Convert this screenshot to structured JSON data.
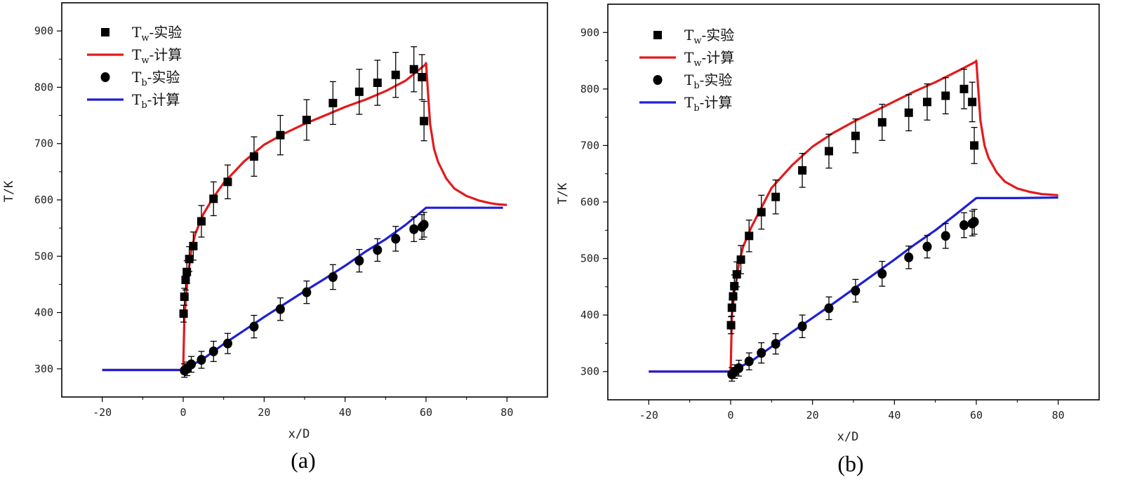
{
  "chart_data": [
    {
      "type": "line",
      "panel_label": "(a)",
      "xlabel": "x/D",
      "ylabel": "T/K",
      "xlim": [
        -30,
        90
      ],
      "ylim": [
        250,
        950
      ],
      "xticks": [
        -20,
        0,
        20,
        40,
        60,
        80
      ],
      "yticks": [
        300,
        400,
        500,
        600,
        700,
        800,
        900
      ],
      "xtick_labels": [
        "-20",
        "0",
        "20",
        "40",
        "60",
        "80"
      ],
      "ytick_labels": [
        "300",
        "400",
        "500",
        "600",
        "700",
        "800",
        "900"
      ],
      "legend_position": "top-left",
      "legend": [
        {
          "symbol": "square",
          "base": "T",
          "sub": "w",
          "suffix": "-实验"
        },
        {
          "symbol": "red-line",
          "base": "T",
          "sub": "w",
          "suffix": "-计算"
        },
        {
          "symbol": "circle",
          "base": "T",
          "sub": "b",
          "suffix": "-实验"
        },
        {
          "symbol": "blue-line",
          "base": "T",
          "sub": "b",
          "suffix": "-计算"
        }
      ],
      "series": [
        {
          "name": "Tw-计算",
          "color": "#e31a1c",
          "x": [
            -20,
            0,
            0.3,
            1,
            2,
            3,
            5,
            7.5,
            10,
            15,
            20,
            25,
            30,
            35,
            40,
            45,
            50,
            55,
            59.8,
            60,
            61,
            62,
            63,
            65,
            67,
            70,
            73,
            76,
            78,
            80
          ],
          "y": [
            298,
            298,
            390,
            455,
            510,
            540,
            575,
            605,
            630,
            668,
            698,
            718,
            735,
            750,
            765,
            778,
            793,
            812,
            840,
            843,
            735,
            690,
            667,
            638,
            620,
            607,
            599,
            594,
            592,
            591
          ]
        },
        {
          "name": "Tb-计算",
          "color": "#1f1fd6",
          "x": [
            -20,
            0,
            5,
            10,
            15,
            20,
            25,
            30,
            35,
            40,
            45,
            50,
            55,
            60,
            70,
            79
          ],
          "y": [
            298,
            298,
            318,
            344,
            368,
            392,
            415,
            438,
            460,
            483,
            508,
            530,
            556,
            586,
            586,
            586
          ]
        },
        {
          "name": "Tw-实验",
          "marker": "square",
          "x": [
            0.1,
            0.3,
            0.6,
            0.9,
            1.5,
            2.5,
            4.5,
            7.5,
            11,
            17.5,
            24,
            30.5,
            37,
            43.5,
            48,
            52.5,
            57,
            59,
            59.5
          ],
          "y": [
            398,
            428,
            458,
            472,
            495,
            518,
            562,
            602,
            632,
            677,
            715,
            742,
            772,
            792,
            808,
            822,
            832,
            818,
            740
          ],
          "err": [
            15,
            15,
            18,
            20,
            22,
            25,
            28,
            30,
            30,
            35,
            35,
            36,
            38,
            40,
            40,
            40,
            40,
            40,
            35
          ]
        },
        {
          "name": "Tb-实验",
          "marker": "circle",
          "x": [
            0.3,
            1,
            2,
            4.5,
            7.5,
            11,
            17.5,
            24,
            30.5,
            37,
            43.5,
            48,
            52.5,
            57,
            59,
            59.5
          ],
          "y": [
            297,
            300,
            308,
            316,
            331,
            345,
            375,
            406,
            436,
            463,
            492,
            511,
            531,
            548,
            552,
            556
          ],
          "err": [
            12,
            12,
            14,
            15,
            18,
            18,
            20,
            20,
            20,
            22,
            20,
            20,
            22,
            22,
            22,
            22
          ]
        }
      ]
    },
    {
      "type": "line",
      "panel_label": "(b)",
      "xlabel": "x/D",
      "ylabel": "T/K",
      "xlim": [
        -30,
        90
      ],
      "ylim": [
        250,
        950
      ],
      "xticks": [
        -20,
        0,
        20,
        40,
        60,
        80
      ],
      "yticks": [
        300,
        400,
        500,
        600,
        700,
        800,
        900
      ],
      "xtick_labels": [
        "-20",
        "0",
        "20",
        "40",
        "60",
        "80"
      ],
      "ytick_labels": [
        "300",
        "400",
        "500",
        "600",
        "700",
        "800",
        "900"
      ],
      "legend_position": "top-left",
      "legend": [
        {
          "symbol": "square",
          "base": "T",
          "sub": "w",
          "suffix": "-实验"
        },
        {
          "symbol": "red-line",
          "base": "T",
          "sub": "w",
          "suffix": "-计算"
        },
        {
          "symbol": "circle",
          "base": "T",
          "sub": "b",
          "suffix": "-实验"
        },
        {
          "symbol": "blue-line",
          "base": "T",
          "sub": "b",
          "suffix": "-计算"
        }
      ],
      "series": [
        {
          "name": "Tw-计算",
          "color": "#e31a1c",
          "x": [
            -20,
            0,
            0.3,
            1,
            2,
            3,
            5,
            7.5,
            10,
            15,
            20,
            25,
            30,
            35,
            40,
            45,
            50,
            55,
            59.8,
            60,
            61,
            62,
            63,
            65,
            67,
            70,
            73,
            76,
            78,
            80
          ],
          "y": [
            300,
            300,
            400,
            445,
            490,
            520,
            555,
            590,
            625,
            665,
            698,
            722,
            742,
            760,
            778,
            796,
            812,
            830,
            848,
            850,
            745,
            700,
            678,
            652,
            636,
            624,
            618,
            614,
            613,
            612
          ]
        },
        {
          "name": "Tb-计算",
          "color": "#1f1fd6",
          "x": [
            -20,
            0,
            5,
            10,
            15,
            20,
            25,
            30,
            35,
            40,
            45,
            50,
            55,
            60,
            70,
            80
          ],
          "y": [
            300,
            300,
            318,
            344,
            370,
            395,
            420,
            446,
            472,
            498,
            525,
            550,
            578,
            607,
            607,
            608
          ]
        },
        {
          "name": "Tw-实验",
          "marker": "square",
          "x": [
            0.1,
            0.3,
            0.6,
            0.9,
            1.5,
            2.5,
            4.5,
            7.5,
            11,
            17.5,
            24,
            30.5,
            37,
            43.5,
            48,
            52.5,
            57,
            59,
            59.5
          ],
          "y": [
            382,
            413,
            433,
            451,
            472,
            498,
            540,
            582,
            609,
            656,
            690,
            717,
            741,
            758,
            777,
            788,
            800,
            777,
            700
          ],
          "err": [
            15,
            15,
            18,
            20,
            22,
            25,
            28,
            30,
            30,
            30,
            30,
            30,
            32,
            32,
            32,
            32,
            35,
            35,
            32
          ]
        },
        {
          "name": "Tb-实验",
          "marker": "circle",
          "x": [
            0.3,
            1,
            2,
            4.5,
            7.5,
            11,
            17.5,
            24,
            30.5,
            37,
            43.5,
            48,
            52.5,
            57,
            59,
            59.5
          ],
          "y": [
            295,
            300,
            306,
            318,
            333,
            349,
            380,
            412,
            443,
            473,
            502,
            521,
            540,
            559,
            562,
            565
          ],
          "err": [
            12,
            12,
            14,
            15,
            18,
            18,
            20,
            20,
            20,
            22,
            20,
            20,
            22,
            22,
            22,
            22
          ]
        }
      ]
    }
  ]
}
